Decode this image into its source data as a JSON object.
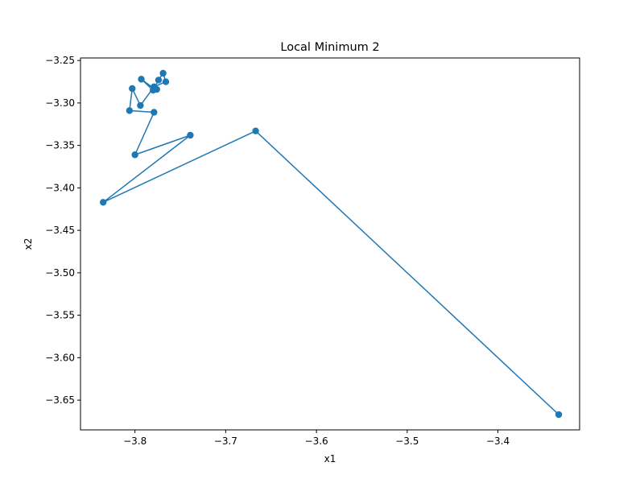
{
  "chart_data": {
    "type": "line",
    "title": "Local Minimum 2",
    "xlabel": "x1",
    "ylabel": "x2",
    "xlim": [
      -3.86,
      -3.31
    ],
    "ylim": [
      -3.685,
      -3.247
    ],
    "xticks": [
      -3.8,
      -3.7,
      -3.6,
      -3.5,
      -3.4
    ],
    "xtick_labels": [
      "−3.8",
      "−3.7",
      "−3.6",
      "−3.5",
      "−3.4"
    ],
    "yticks": [
      -3.25,
      -3.3,
      -3.35,
      -3.4,
      -3.45,
      -3.5,
      -3.55,
      -3.6,
      -3.65
    ],
    "ytick_labels": [
      "−3.25",
      "−3.30",
      "−3.35",
      "−3.40",
      "−3.45",
      "−3.50",
      "−3.55",
      "−3.60",
      "−3.65"
    ],
    "grid": false,
    "series_color": "#1f77b4",
    "marker": "circle",
    "points": [
      {
        "x": -3.333,
        "y": -3.667
      },
      {
        "x": -3.667,
        "y": -3.333
      },
      {
        "x": -3.835,
        "y": -3.417
      },
      {
        "x": -3.739,
        "y": -3.338
      },
      {
        "x": -3.8,
        "y": -3.361
      },
      {
        "x": -3.779,
        "y": -3.311
      },
      {
        "x": -3.806,
        "y": -3.309
      },
      {
        "x": -3.803,
        "y": -3.283
      },
      {
        "x": -3.794,
        "y": -3.303
      },
      {
        "x": -3.779,
        "y": -3.281
      },
      {
        "x": -3.766,
        "y": -3.275
      },
      {
        "x": -3.769,
        "y": -3.265
      },
      {
        "x": -3.774,
        "y": -3.273
      },
      {
        "x": -3.779,
        "y": -3.283
      },
      {
        "x": -3.793,
        "y": -3.272
      },
      {
        "x": -3.78,
        "y": -3.285
      },
      {
        "x": -3.776,
        "y": -3.284
      }
    ]
  }
}
